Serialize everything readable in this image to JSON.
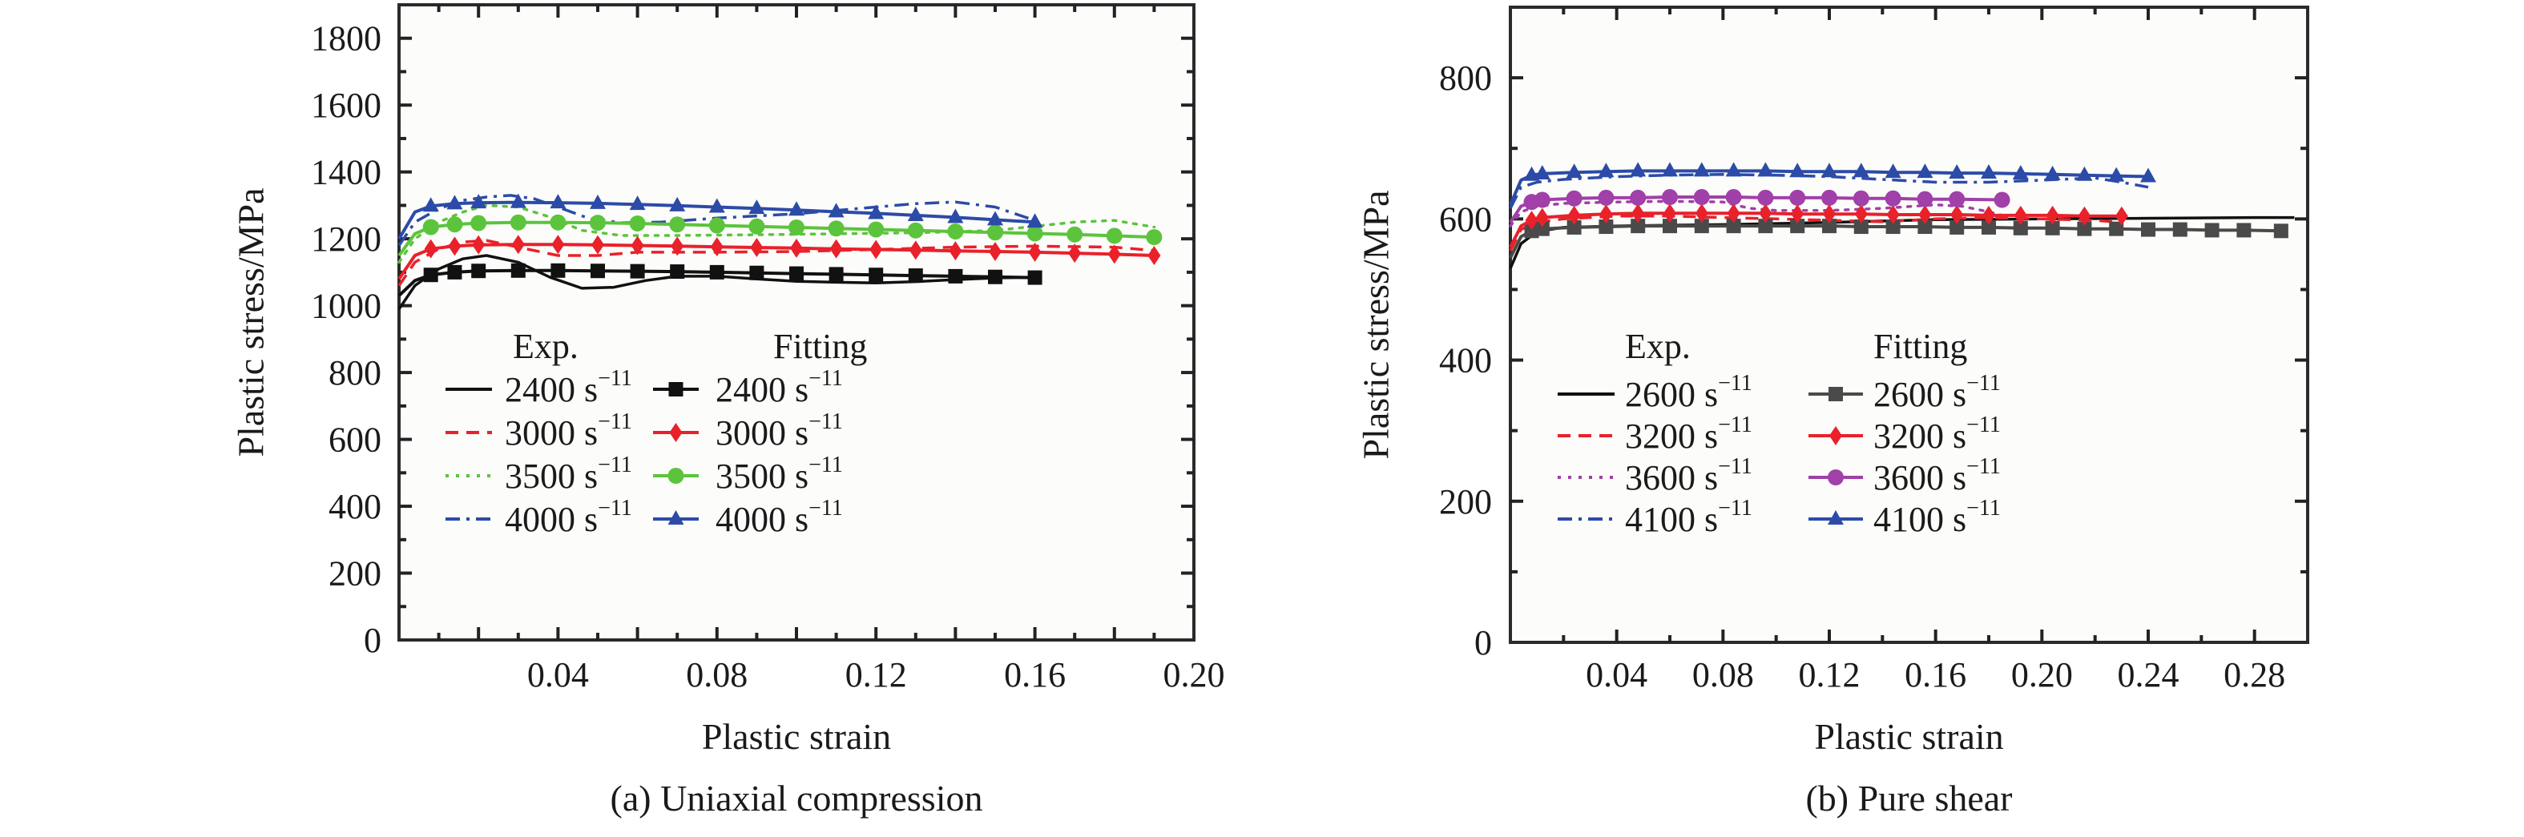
{
  "chart_data": [
    {
      "type": "line",
      "panel": "a",
      "caption": "(a) Uniaxial compression",
      "xlabel": "Plastic strain",
      "ylabel": "Plastic stress/MPa",
      "xlim": [
        0,
        0.2
      ],
      "ylim": [
        0,
        1900
      ],
      "xticks": [
        0.04,
        0.08,
        0.12,
        0.16,
        0.2
      ],
      "xtick_labels": [
        "0.04",
        "0.08",
        "0.12",
        "0.16",
        "0.20"
      ],
      "yticks": [
        0,
        200,
        400,
        600,
        800,
        1000,
        1200,
        1400,
        1600,
        1800
      ],
      "ytick_labels": [
        "0",
        "200",
        "400",
        "600",
        "800",
        "1000",
        "1200",
        "1400",
        "1600",
        "1800"
      ],
      "grid": false,
      "legend": {
        "placement": "center-left",
        "headers": [
          "Exp.",
          "Fitting"
        ],
        "unit": "s",
        "unit_exponent": "−1"
      },
      "series": [
        {
          "name": "Exp. 2400 s^-1",
          "group": "Exp.",
          "rate": "2400",
          "color": "#111111",
          "style": "solid",
          "marker": "none",
          "x": [
            0,
            0.004,
            0.01,
            0.016,
            0.022,
            0.03,
            0.038,
            0.046,
            0.054,
            0.062,
            0.07,
            0.08,
            0.09,
            0.1,
            0.11,
            0.12,
            0.13,
            0.14,
            0.15,
            0.16
          ],
          "y": [
            990,
            1060,
            1110,
            1140,
            1150,
            1130,
            1085,
            1052,
            1055,
            1075,
            1088,
            1088,
            1080,
            1073,
            1070,
            1068,
            1072,
            1078,
            1083,
            1085
          ]
        },
        {
          "name": "Exp. 3000 s^-1",
          "group": "Exp.",
          "rate": "3000",
          "color": "#e8212b",
          "style": "dashed",
          "marker": "none",
          "x": [
            0,
            0.004,
            0.01,
            0.016,
            0.022,
            0.03,
            0.04,
            0.05,
            0.06,
            0.08,
            0.1,
            0.12,
            0.14,
            0.16,
            0.18,
            0.19
          ],
          "y": [
            1060,
            1130,
            1170,
            1190,
            1195,
            1175,
            1150,
            1150,
            1160,
            1160,
            1162,
            1168,
            1175,
            1178,
            1175,
            1165
          ]
        },
        {
          "name": "Exp. 3500 s^-1",
          "group": "Exp.",
          "rate": "3500",
          "color": "#5cc43c",
          "style": "dotted",
          "marker": "none",
          "x": [
            0,
            0.004,
            0.01,
            0.016,
            0.022,
            0.03,
            0.038,
            0.046,
            0.056,
            0.07,
            0.09,
            0.11,
            0.13,
            0.15,
            0.17,
            0.18,
            0.19
          ],
          "y": [
            1130,
            1200,
            1250,
            1280,
            1300,
            1295,
            1265,
            1225,
            1210,
            1210,
            1212,
            1215,
            1218,
            1225,
            1250,
            1255,
            1235
          ]
        },
        {
          "name": "Exp. 4000 s^-1",
          "group": "Exp.",
          "rate": "4000",
          "color": "#2c4ba8",
          "style": "dashdot",
          "marker": "none",
          "x": [
            0,
            0.004,
            0.01,
            0.016,
            0.022,
            0.028,
            0.034,
            0.04,
            0.048,
            0.056,
            0.066,
            0.08,
            0.1,
            0.12,
            0.13,
            0.14,
            0.15,
            0.16
          ],
          "y": [
            1180,
            1250,
            1290,
            1315,
            1325,
            1330,
            1320,
            1295,
            1260,
            1248,
            1250,
            1262,
            1275,
            1295,
            1305,
            1310,
            1295,
            1255
          ]
        },
        {
          "name": "Fitting 2400 s^-1",
          "group": "Fitting",
          "rate": "2400",
          "color": "#111111",
          "style": "solid",
          "marker": "square",
          "x": [
            0,
            0.004,
            0.008,
            0.014,
            0.02,
            0.03,
            0.04,
            0.05,
            0.06,
            0.07,
            0.08,
            0.09,
            0.1,
            0.11,
            0.12,
            0.13,
            0.14,
            0.15,
            0.16
          ],
          "y": [
            1030,
            1075,
            1092,
            1100,
            1104,
            1105,
            1105,
            1104,
            1103,
            1102,
            1100,
            1098,
            1096,
            1094,
            1092,
            1090,
            1088,
            1086,
            1084
          ]
        },
        {
          "name": "Fitting 3000 s^-1",
          "group": "Fitting",
          "rate": "3000",
          "color": "#e8212b",
          "style": "solid",
          "marker": "diamond",
          "x": [
            0,
            0.004,
            0.008,
            0.014,
            0.02,
            0.03,
            0.04,
            0.05,
            0.06,
            0.07,
            0.08,
            0.09,
            0.1,
            0.11,
            0.12,
            0.13,
            0.14,
            0.15,
            0.16,
            0.17,
            0.18,
            0.19
          ],
          "y": [
            1080,
            1150,
            1170,
            1178,
            1182,
            1183,
            1183,
            1182,
            1180,
            1178,
            1176,
            1174,
            1172,
            1170,
            1168,
            1166,
            1164,
            1162,
            1160,
            1157,
            1154,
            1150
          ]
        },
        {
          "name": "Fitting 3500 s^-1",
          "group": "Fitting",
          "rate": "3500",
          "color": "#5cc43c",
          "style": "solid",
          "marker": "circle",
          "x": [
            0,
            0.004,
            0.008,
            0.014,
            0.02,
            0.03,
            0.04,
            0.05,
            0.06,
            0.07,
            0.08,
            0.09,
            0.1,
            0.11,
            0.12,
            0.13,
            0.14,
            0.15,
            0.16,
            0.17,
            0.18,
            0.19
          ],
          "y": [
            1150,
            1215,
            1235,
            1243,
            1247,
            1249,
            1249,
            1248,
            1246,
            1243,
            1240,
            1237,
            1234,
            1231,
            1228,
            1225,
            1222,
            1219,
            1216,
            1213,
            1209,
            1205
          ]
        },
        {
          "name": "Fitting 4000 s^-1",
          "group": "Fitting",
          "rate": "4000",
          "color": "#2c4ba8",
          "style": "solid",
          "marker": "triangle",
          "x": [
            0,
            0.004,
            0.008,
            0.014,
            0.02,
            0.03,
            0.04,
            0.05,
            0.06,
            0.07,
            0.08,
            0.09,
            0.1,
            0.11,
            0.12,
            0.13,
            0.14,
            0.15,
            0.16
          ],
          "y": [
            1200,
            1280,
            1298,
            1305,
            1308,
            1309,
            1308,
            1306,
            1303,
            1299,
            1295,
            1291,
            1286,
            1281,
            1276,
            1270,
            1264,
            1257,
            1250
          ]
        }
      ]
    },
    {
      "type": "line",
      "panel": "b",
      "caption": "(b) Pure shear",
      "xlabel": "Plastic strain",
      "ylabel": "Plastic stress/MPa",
      "xlim": [
        0,
        0.3
      ],
      "ylim": [
        0,
        900
      ],
      "xticks": [
        0.04,
        0.08,
        0.12,
        0.16,
        0.2,
        0.24,
        0.28
      ],
      "xtick_labels": [
        "0.04",
        "0.08",
        "0.12",
        "0.16",
        "0.20",
        "0.24",
        "0.28"
      ],
      "yticks": [
        0,
        200,
        400,
        600,
        800
      ],
      "ytick_labels": [
        "0",
        "200",
        "400",
        "600",
        "800"
      ],
      "grid": false,
      "legend": {
        "placement": "center-left",
        "headers": [
          "Exp.",
          "Fitting"
        ],
        "unit": "s",
        "unit_exponent": "−1"
      },
      "series": [
        {
          "name": "Exp. 2600 s^-1",
          "group": "Exp.",
          "rate": "2600",
          "color": "#111111",
          "style": "solid",
          "marker": "none",
          "x": [
            0,
            0.004,
            0.01,
            0.02,
            0.04,
            0.08,
            0.12,
            0.16,
            0.2,
            0.24,
            0.28,
            0.295
          ],
          "y": [
            530,
            565,
            582,
            588,
            590,
            592,
            595,
            599,
            600,
            601,
            602,
            602
          ]
        },
        {
          "name": "Exp. 3200 s^-1",
          "group": "Exp.",
          "rate": "3200",
          "color": "#e8212b",
          "style": "dashed",
          "marker": "none",
          "x": [
            0,
            0.004,
            0.01,
            0.02,
            0.04,
            0.06,
            0.08,
            0.1,
            0.12,
            0.14,
            0.16,
            0.18,
            0.2,
            0.22,
            0.23
          ],
          "y": [
            555,
            585,
            595,
            600,
            604,
            604,
            602,
            600,
            598,
            596,
            600,
            602,
            600,
            598,
            595
          ]
        },
        {
          "name": "Exp. 3600 s^-1",
          "group": "Exp.",
          "rate": "3600",
          "color": "#a040a8",
          "style": "dotted",
          "marker": "none",
          "x": [
            0,
            0.004,
            0.01,
            0.02,
            0.04,
            0.06,
            0.08,
            0.09,
            0.1,
            0.12,
            0.14,
            0.16,
            0.17,
            0.18,
            0.185
          ],
          "y": [
            590,
            610,
            618,
            622,
            624,
            625,
            624,
            615,
            612,
            612,
            615,
            620,
            618,
            610,
            605
          ]
        },
        {
          "name": "Exp. 4100 s^-1",
          "group": "Exp.",
          "rate": "4100",
          "color": "#2c4ba8",
          "style": "dashdot",
          "marker": "none",
          "x": [
            0,
            0.004,
            0.01,
            0.02,
            0.04,
            0.06,
            0.08,
            0.1,
            0.12,
            0.14,
            0.16,
            0.18,
            0.2,
            0.22,
            0.23,
            0.24
          ],
          "y": [
            615,
            645,
            652,
            656,
            660,
            662,
            663,
            662,
            660,
            656,
            652,
            652,
            655,
            658,
            652,
            645
          ]
        },
        {
          "name": "Fitting 2600 s^-1",
          "group": "Fitting",
          "rate": "2600",
          "color": "#4a4a4a",
          "style": "solid",
          "marker": "square",
          "x": [
            0,
            0.004,
            0.008,
            0.012,
            0.024,
            0.036,
            0.048,
            0.06,
            0.072,
            0.084,
            0.096,
            0.108,
            0.12,
            0.132,
            0.144,
            0.156,
            0.168,
            0.18,
            0.192,
            0.204,
            0.216,
            0.228,
            0.24,
            0.252,
            0.264,
            0.276,
            0.29
          ],
          "y": [
            545,
            575,
            583,
            586,
            588,
            589,
            590,
            590,
            590,
            590,
            590,
            590,
            590,
            589,
            589,
            589,
            588,
            588,
            587,
            587,
            586,
            586,
            585,
            585,
            584,
            584,
            583
          ]
        },
        {
          "name": "Fitting 3200 s^-1",
          "group": "Fitting",
          "rate": "3200",
          "color": "#e8212b",
          "style": "solid",
          "marker": "diamond",
          "x": [
            0,
            0.004,
            0.008,
            0.012,
            0.024,
            0.036,
            0.048,
            0.06,
            0.072,
            0.084,
            0.096,
            0.108,
            0.12,
            0.132,
            0.144,
            0.156,
            0.168,
            0.18,
            0.192,
            0.204,
            0.216,
            0.23
          ],
          "y": [
            560,
            590,
            598,
            602,
            605,
            607,
            608,
            608,
            608,
            608,
            608,
            607,
            607,
            607,
            606,
            606,
            606,
            605,
            605,
            605,
            604,
            604
          ]
        },
        {
          "name": "Fitting 3600 s^-1",
          "group": "Fitting",
          "rate": "3600",
          "color": "#a040a8",
          "style": "solid",
          "marker": "circle",
          "x": [
            0,
            0.004,
            0.008,
            0.012,
            0.024,
            0.036,
            0.048,
            0.06,
            0.072,
            0.084,
            0.096,
            0.108,
            0.12,
            0.132,
            0.144,
            0.156,
            0.168,
            0.185
          ],
          "y": [
            595,
            618,
            624,
            627,
            629,
            630,
            630,
            631,
            631,
            631,
            630,
            630,
            630,
            629,
            629,
            628,
            628,
            627
          ]
        },
        {
          "name": "Fitting 4100 s^-1",
          "group": "Fitting",
          "rate": "4100",
          "color": "#2c4ba8",
          "style": "solid",
          "marker": "triangle",
          "x": [
            0,
            0.004,
            0.008,
            0.012,
            0.024,
            0.036,
            0.048,
            0.06,
            0.072,
            0.084,
            0.096,
            0.108,
            0.12,
            0.132,
            0.144,
            0.156,
            0.168,
            0.18,
            0.192,
            0.204,
            0.216,
            0.228,
            0.24
          ],
          "y": [
            620,
            655,
            662,
            664,
            666,
            667,
            668,
            668,
            668,
            668,
            668,
            667,
            667,
            667,
            666,
            666,
            665,
            665,
            664,
            663,
            662,
            661,
            660
          ]
        }
      ]
    }
  ]
}
